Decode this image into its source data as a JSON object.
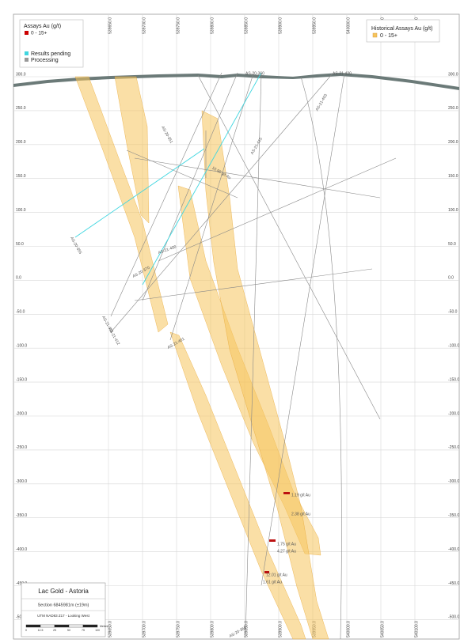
{
  "legend": {
    "title": "Assays Au (g/t)",
    "range": "0 - 15+",
    "pending": "Results pending",
    "processing": "Processing"
  },
  "historical_legend": {
    "title": "Historical Assays Au (g/t)",
    "range": "0 - 15+"
  },
  "elevations": [
    "300.0",
    "250.0",
    "200.0",
    "150.0",
    "100.0",
    "50.0",
    "0.0",
    "-50.0",
    "-100.0",
    "-150.0",
    "-200.0",
    "-250.0",
    "-300.0",
    "-350.0",
    "-400.0",
    "-450.0",
    "-500.0"
  ],
  "eastings": [
    "539650.0",
    "539700.0",
    "539750.0",
    "539800.0",
    "539850.0",
    "539900.0",
    "539950.0",
    "540000.0",
    "540050.0",
    "540100.0"
  ],
  "drill_holes": [
    "AS-20-360",
    "AS-21-403",
    "AS-21-415",
    "AS-20-351",
    "AS-21-400",
    "AS-20-370",
    "AS-21-411",
    "AS-21-412",
    "AS-20-355",
    "AS-21-420",
    "AS-21-401",
    "AS-20-368"
  ],
  "assays": [
    "10.90 g/t Au",
    "1.19 g/t Au",
    "2.38 g/t Au",
    "1.75 g/t Au",
    "4.27 g/t Au",
    "12.01 g/t Au",
    "1.61 g/t Au"
  ],
  "title_block": {
    "title": "Lac Gold - Astoria",
    "section": "Section 6845981m (±19m)",
    "projection": "UTM NAD83 Z17 - Looking West",
    "scale": [
      "0",
      "12.5",
      "25",
      "50",
      "75",
      "100"
    ],
    "unit": "Metres"
  }
}
